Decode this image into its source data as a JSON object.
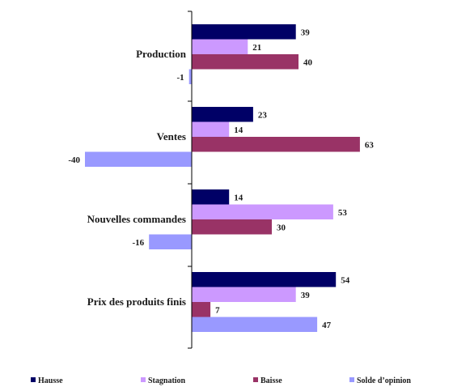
{
  "chart_data": {
    "type": "bar",
    "orientation": "horizontal",
    "categories": [
      "Production",
      "Ventes",
      "Nouvelles commandes",
      "Prix des produits finis"
    ],
    "series": [
      {
        "name": "Hausse",
        "values": [
          39,
          23,
          14,
          54
        ],
        "color": "#000066"
      },
      {
        "name": "Stagnation",
        "values": [
          21,
          14,
          53,
          39
        ],
        "color": "#CC99FF"
      },
      {
        "name": "Baisse",
        "values": [
          40,
          63,
          30,
          7
        ],
        "color": "#993366"
      },
      {
        "name": "Solde d’opinion",
        "values": [
          -1,
          -40,
          -16,
          47
        ],
        "color": "#9999FF"
      }
    ],
    "xlim": [
      -40,
      63
    ],
    "title": "",
    "xlabel": "",
    "ylabel": "",
    "grid": false,
    "legend_position": "bottom"
  }
}
